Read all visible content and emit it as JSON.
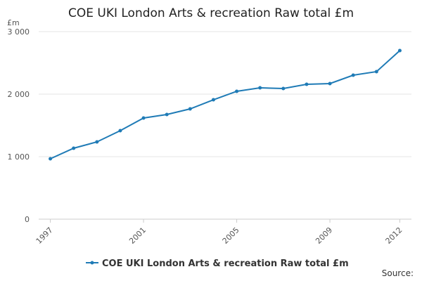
{
  "chart_data": {
    "type": "line",
    "title": "COE UKI London Arts & recreation Raw total £m",
    "y_label": "£m",
    "x": [
      1997,
      1998,
      1999,
      2000,
      2001,
      2002,
      2003,
      2004,
      2005,
      2006,
      2007,
      2008,
      2009,
      2010,
      2011,
      2012
    ],
    "series": [
      {
        "name": "COE UKI London Arts & recreation Raw total £m",
        "color": "#1f7bb6",
        "values": [
          966,
          1135,
          1236,
          1416,
          1618,
          1674,
          1764,
          1910,
          2045,
          2101,
          2090,
          2157,
          2169,
          2303,
          2360,
          2697
        ]
      }
    ],
    "xlim": [
      1996.5,
      2012.5
    ],
    "xticks": [
      1997,
      2001,
      2005,
      2009,
      2012
    ],
    "ylim": [
      0,
      3000
    ],
    "yticks": [
      0,
      {
        "value": 1000,
        "label": "1 000"
      },
      {
        "value": 2000,
        "label": "2 000"
      },
      {
        "value": 3000,
        "label": "3 000"
      }
    ],
    "grid": true,
    "legend": "bottom",
    "source": "Source:"
  }
}
